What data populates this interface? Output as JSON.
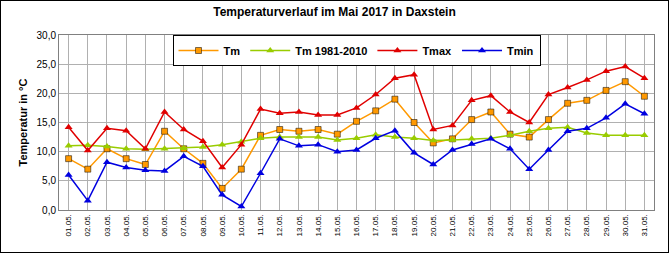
{
  "chart_data": {
    "type": "line",
    "title": "Temperaturverlauf im Mai 2017 in Daxstein",
    "y_label": "Temperatur in °C",
    "categories": [
      "01.05.",
      "02.05.",
      "03.05.",
      "04.05.",
      "05.05.",
      "06.05.",
      "07.05.",
      "08.05.",
      "09.05.",
      "10.05.",
      "11.05.",
      "12.05.",
      "13.05.",
      "14.05.",
      "15.05.",
      "16.05.",
      "17.05.",
      "18.05.",
      "19.05.",
      "20.05.",
      "21.05.",
      "22.05.",
      "23.05.",
      "24.05.",
      "25.05.",
      "26.05.",
      "27.05.",
      "28.05.",
      "29.05.",
      "30.05.",
      "31.05."
    ],
    "series": [
      {
        "name": "Tm",
        "color": "#FF9900",
        "marker": "square",
        "line_style": "solid",
        "values": [
          8.8,
          7.0,
          10.5,
          8.8,
          7.8,
          13.5,
          10.5,
          8.0,
          3.7,
          7.0,
          12.8,
          13.8,
          13.5,
          13.8,
          13.0,
          15.2,
          17.0,
          19.0,
          15.0,
          11.5,
          12.2,
          15.5,
          16.8,
          13.0,
          12.5,
          15.5,
          18.3,
          18.8,
          20.5,
          22.0,
          19.5
        ]
      },
      {
        "name": "Tm 1981-2010",
        "color": "#99CC00",
        "marker": "triangle",
        "line_style": "solid",
        "values": [
          11.0,
          11.1,
          10.9,
          10.5,
          10.4,
          10.5,
          10.6,
          10.8,
          11.2,
          11.7,
          12.3,
          12.5,
          12.5,
          12.5,
          12.0,
          12.3,
          12.9,
          12.5,
          12.3,
          11.9,
          12.0,
          12.2,
          12.3,
          12.8,
          13.5,
          14.0,
          14.2,
          13.2,
          12.8,
          12.8,
          12.8
        ]
      },
      {
        "name": "Tmax",
        "color": "#E00000",
        "marker": "triangle",
        "line_style": "solid",
        "values": [
          14.2,
          10.2,
          14.0,
          13.6,
          10.5,
          16.8,
          13.8,
          11.8,
          7.3,
          11.2,
          17.3,
          16.6,
          16.8,
          16.3,
          16.3,
          17.5,
          19.8,
          22.6,
          23.2,
          13.8,
          14.5,
          18.8,
          19.6,
          16.8,
          15.0,
          19.8,
          21.0,
          22.3,
          23.8,
          24.6,
          22.6
        ]
      },
      {
        "name": "Tmin",
        "color": "#0000E0",
        "marker": "triangle",
        "line_style": "solid",
        "values": [
          6.0,
          1.6,
          8.2,
          7.3,
          6.8,
          6.7,
          9.2,
          7.5,
          2.6,
          0.6,
          6.3,
          12.2,
          11.0,
          11.2,
          10.0,
          10.3,
          12.3,
          13.6,
          9.8,
          7.8,
          10.3,
          11.3,
          12.2,
          10.5,
          7.0,
          10.3,
          13.5,
          14.0,
          15.8,
          18.2,
          16.5
        ]
      }
    ],
    "ylim": [
      0,
      30
    ],
    "yticks": [
      {
        "value": 0,
        "label": "0,0"
      },
      {
        "value": 5,
        "label": "5,0"
      },
      {
        "value": 10,
        "label": "10,0"
      },
      {
        "value": 15,
        "label": "15,0"
      },
      {
        "value": 20,
        "label": "20,0"
      },
      {
        "value": 25,
        "label": "25,0"
      },
      {
        "value": 30,
        "label": "30,0"
      }
    ],
    "grid": true,
    "legend": "top"
  }
}
